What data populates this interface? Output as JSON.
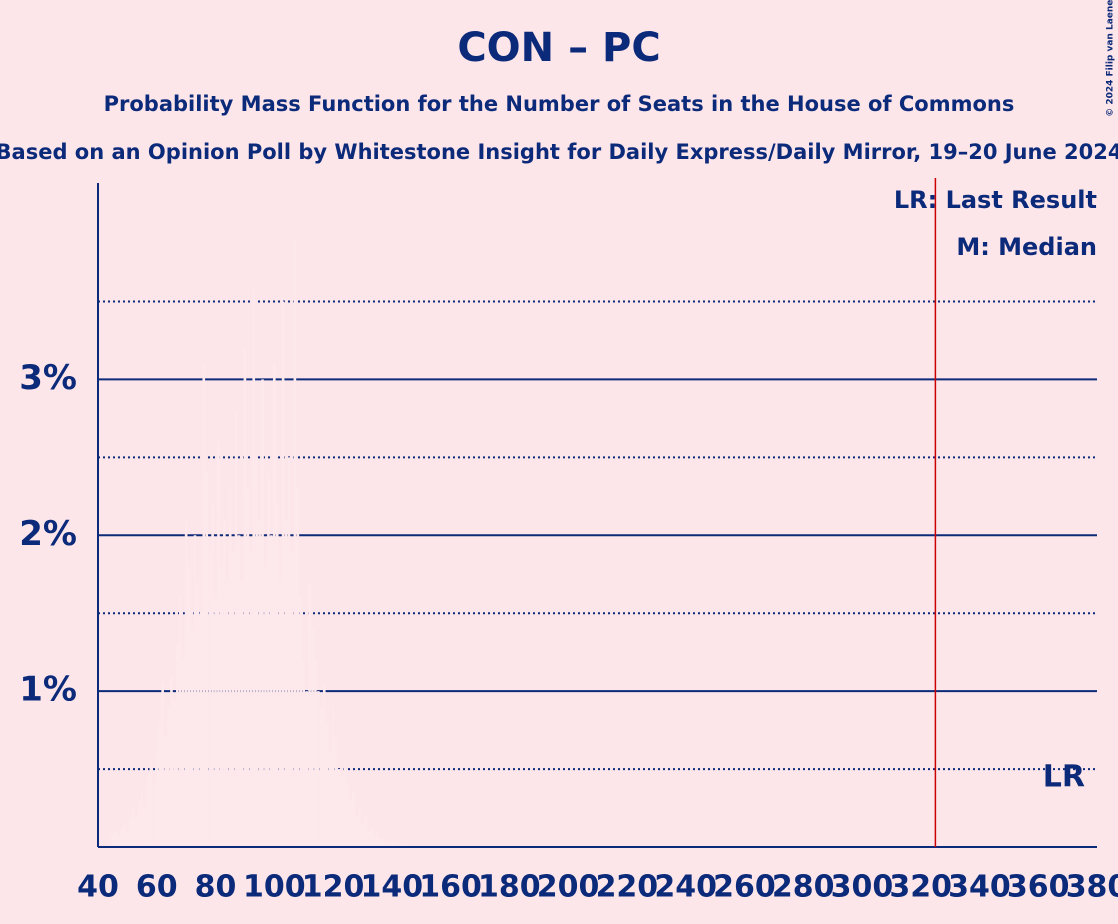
{
  "chart_data": {
    "type": "bar",
    "title": "CON – PC",
    "subtitle": "Probability Mass Function for the Number of Seats in the House of Commons",
    "subtitle2": "Based on an Opinion Poll by Whitestone Insight for Daily Express/Daily Mirror, 19–20 June 2024",
    "copyright": "© 2024 Filip van Laenen",
    "x": [
      44,
      45,
      46,
      47,
      48,
      49,
      50,
      51,
      52,
      53,
      54,
      55,
      56,
      57,
      58,
      59,
      60,
      61,
      62,
      63,
      64,
      65,
      66,
      67,
      68,
      69,
      70,
      71,
      72,
      73,
      74,
      75,
      76,
      77,
      78,
      79,
      80,
      81,
      82,
      83,
      84,
      85,
      86,
      87,
      88,
      89,
      90,
      91,
      92,
      93,
      94,
      95,
      96,
      97,
      98,
      99,
      100,
      101,
      102,
      103,
      104,
      105,
      106,
      107,
      108,
      109,
      110,
      111,
      112,
      113,
      114,
      115,
      116,
      117,
      118,
      119,
      120,
      121,
      122,
      123,
      124,
      125,
      126,
      127,
      128,
      129,
      130,
      131,
      132,
      133,
      134,
      135,
      136,
      137,
      138,
      139,
      140,
      141,
      142,
      143,
      144,
      145
    ],
    "values": [
      0.05,
      0.08,
      0.1,
      0.07,
      0.12,
      0.15,
      0.1,
      0.18,
      0.25,
      0.2,
      0.3,
      0.35,
      0.25,
      0.45,
      0.55,
      0.4,
      0.6,
      0.8,
      1.05,
      0.7,
      0.9,
      1.1,
      0.95,
      1.3,
      1.6,
      1.2,
      2.1,
      1.8,
      1.4,
      2.0,
      1.7,
      1.5,
      3.1,
      2.4,
      1.9,
      2.2,
      1.6,
      2.6,
      1.8,
      2.1,
      1.7,
      2.3,
      1.9,
      2.8,
      2.0,
      1.7,
      3.2,
      2.3,
      1.9,
      3.6,
      2.5,
      2.1,
      3.0,
      1.8,
      2.4,
      2.0,
      3.1,
      2.2,
      1.7,
      3.5,
      2.1,
      2.5,
      1.9,
      3.9,
      2.3,
      1.6,
      1.2,
      1.0,
      1.7,
      1.4,
      1.2,
      1.0,
      0.9,
      1.05,
      0.8,
      0.6,
      0.9,
      0.7,
      0.5,
      0.45,
      0.55,
      0.4,
      0.3,
      0.35,
      0.2,
      0.25,
      0.15,
      0.2,
      0.1,
      0.12,
      0.08,
      0.1,
      0.06,
      0.05,
      0.04,
      0.04,
      0.03,
      0.03,
      0.02,
      0.02,
      0.02,
      0.01
    ],
    "color": "#fde8ec",
    "xlim": [
      40,
      380
    ],
    "xticks": [
      40,
      60,
      80,
      100,
      120,
      140,
      160,
      180,
      200,
      220,
      240,
      260,
      280,
      300,
      320,
      340,
      360,
      380
    ],
    "ylim": [
      0,
      4.26
    ],
    "yticks": [
      {
        "value": 1,
        "label": "1%"
      },
      {
        "value": 2,
        "label": "2%"
      },
      {
        "value": 3,
        "label": "3%"
      }
    ],
    "minor_yticks": [
      0.5,
      1.5,
      2.5,
      3.5
    ],
    "grid": true,
    "last_result": 325,
    "last_result_label": "LR",
    "legend": [
      "LR: Last Result",
      "M: Median"
    ]
  }
}
